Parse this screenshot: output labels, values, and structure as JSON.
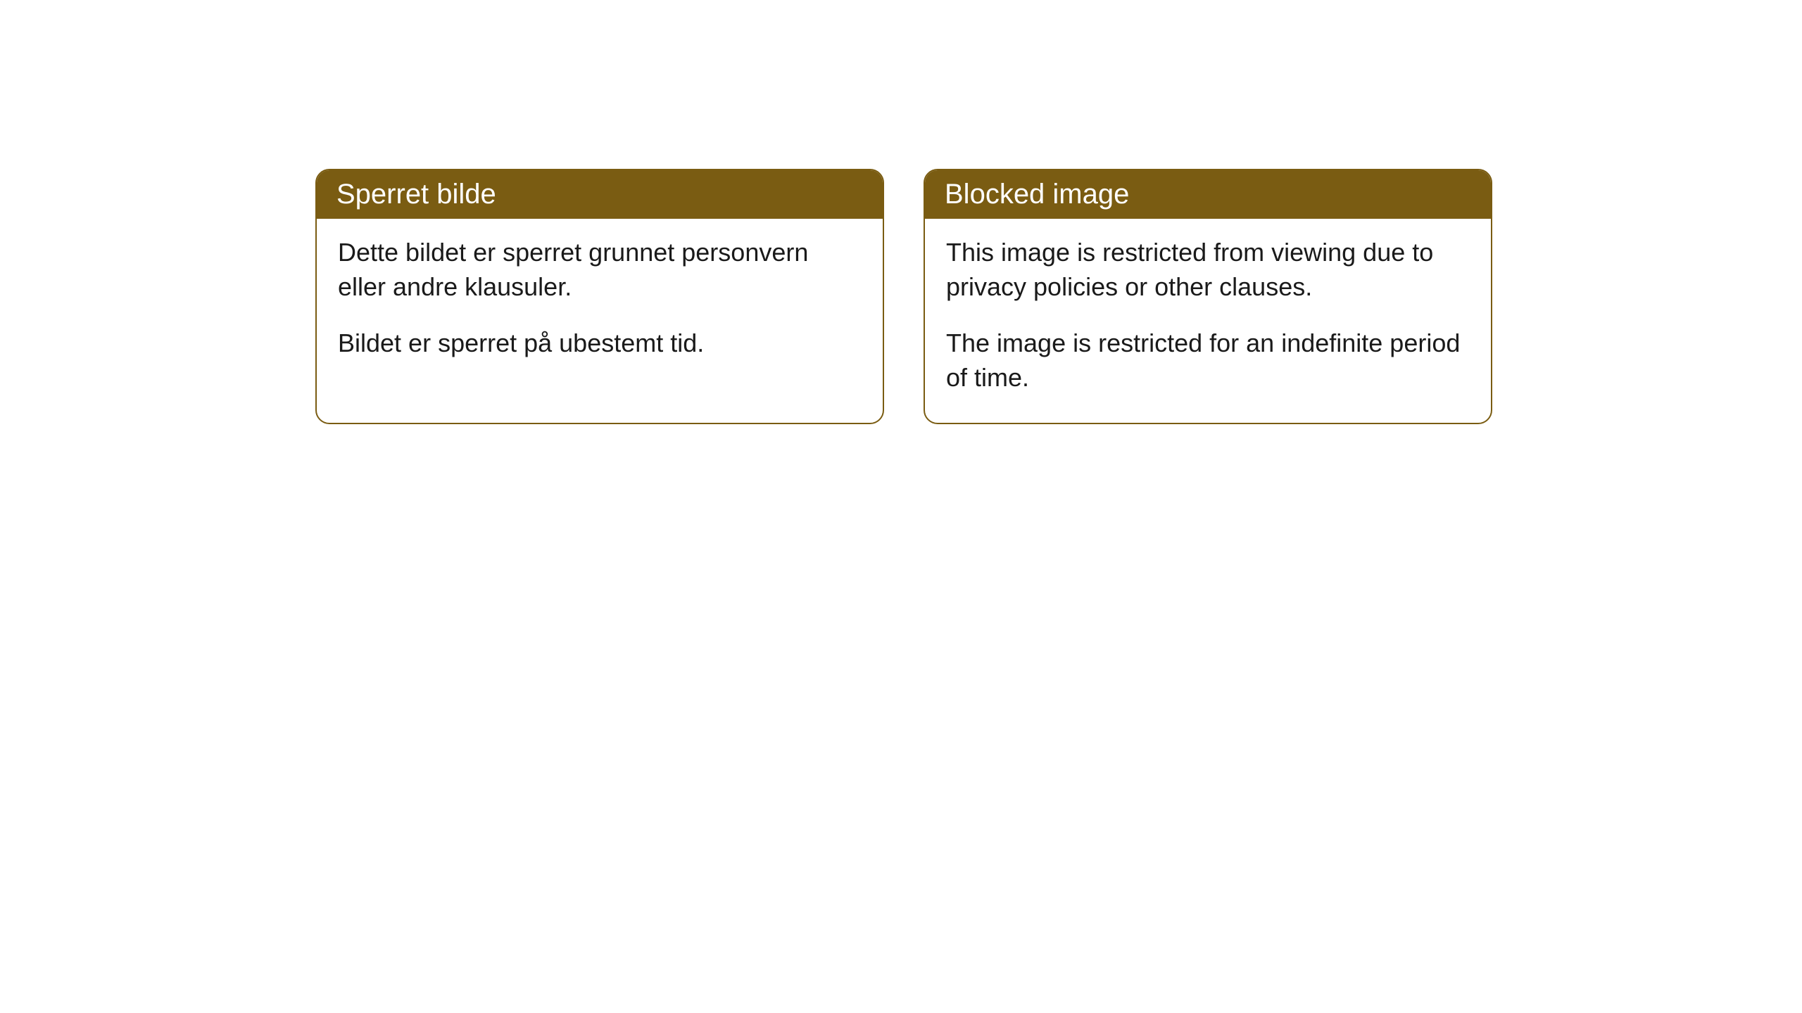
{
  "cards": [
    {
      "title": "Sperret bilde",
      "paragraph1": "Dette bildet er sperret grunnet personvern eller andre klausuler.",
      "paragraph2": "Bildet er sperret på ubestemt tid."
    },
    {
      "title": "Blocked image",
      "paragraph1": "This image is restricted from viewing due to privacy policies or other clauses.",
      "paragraph2": "The image is restricted for an indefinite period of time."
    }
  ],
  "styling": {
    "header_background": "#7a5c12",
    "header_text_color": "#ffffff",
    "card_border_color": "#7a5c12",
    "card_background": "#ffffff",
    "body_text_color": "#1a1a1a",
    "page_background": "#ffffff",
    "border_radius": 20,
    "title_fontsize": 40,
    "body_fontsize": 36
  }
}
